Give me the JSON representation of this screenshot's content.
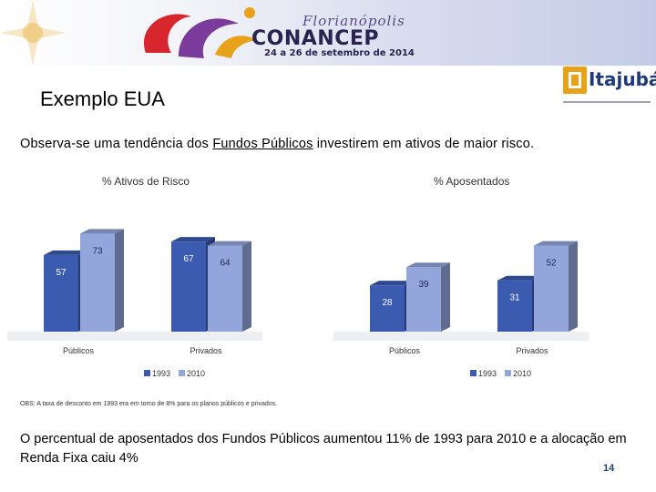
{
  "header": {
    "logo_script": "Florianópolis",
    "logo_name": "CONANCEP",
    "logo_dates": "24 a 26 de setembro de 2014",
    "partner_logo": "Itajubá"
  },
  "slide": {
    "title": "Exemplo EUA",
    "intro_before": "Observa-se uma tendência dos ",
    "intro_link": "Fundos Públicos",
    "intro_after": " investirem em ativos de maior risco.",
    "note": "OBS: A taxa de desconto em 1993 era em torno de 8% para os planos públicos e privados.",
    "summary": "O percentual de aposentados dos Fundos Públicos aumentou  11% de 1993 para 2010 e a alocação em Renda Fixa caiu 4%",
    "page_number": "14"
  },
  "chart_data": [
    {
      "type": "bar",
      "title": "% Ativos de Risco",
      "categories": [
        "Públicos",
        "Privados"
      ],
      "series": [
        {
          "name": "1993",
          "values": [
            57,
            67
          ],
          "color": "#3a5bb0"
        },
        {
          "name": "2010",
          "values": [
            73,
            64
          ],
          "color": "#93a6dc"
        }
      ],
      "ylim": [
        0,
        80
      ],
      "legend": "bottom"
    },
    {
      "type": "bar",
      "title": "% Aposentados",
      "categories": [
        "Públicos",
        "Privados"
      ],
      "series": [
        {
          "name": "1993",
          "values": [
            28,
            31
          ],
          "color": "#3a5bb0"
        },
        {
          "name": "2010",
          "values": [
            39,
            52
          ],
          "color": "#93a6dc"
        }
      ],
      "ylim": [
        0,
        65
      ],
      "legend": "bottom"
    }
  ]
}
